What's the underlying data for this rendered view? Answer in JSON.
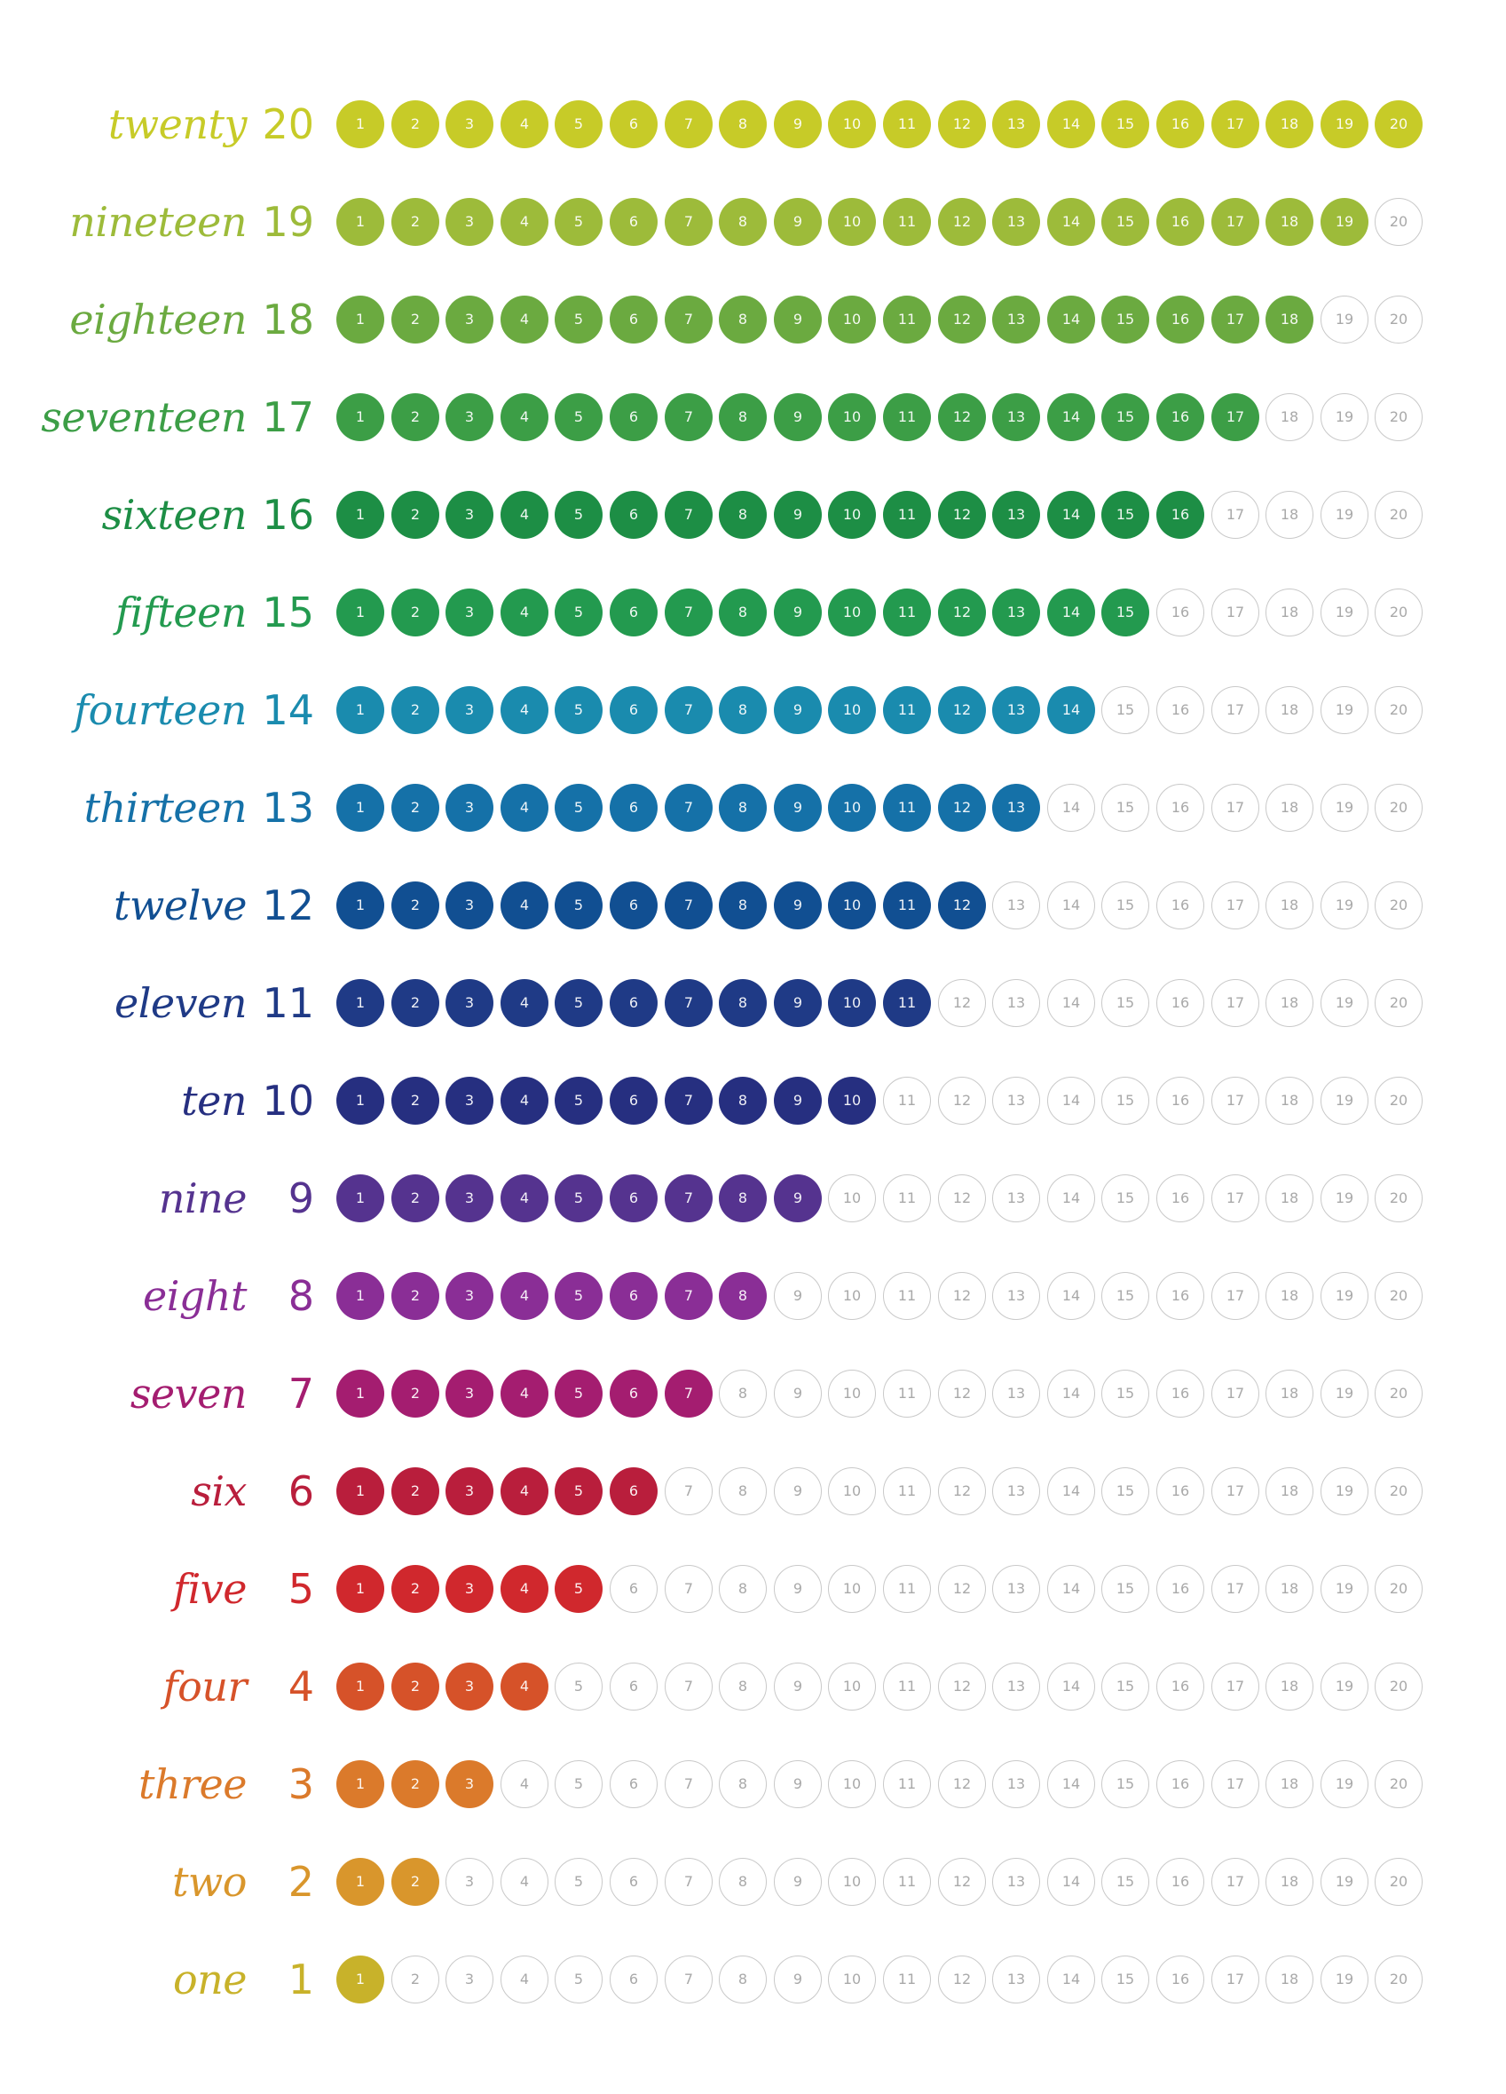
{
  "max": 20,
  "rows": [
    {
      "word": "twenty",
      "number": "20",
      "count": 20,
      "color": "#C7CB28"
    },
    {
      "word": "nineteen",
      "number": "19",
      "count": 19,
      "color": "#9DBB3A"
    },
    {
      "word": "eighteen",
      "number": "18",
      "count": 18,
      "color": "#6BAA40"
    },
    {
      "word": "seventeen",
      "number": "17",
      "count": 17,
      "color": "#3C9E46"
    },
    {
      "word": "sixteen",
      "number": "16",
      "count": 16,
      "color": "#1D8E45"
    },
    {
      "word": "fifteen",
      "number": "15",
      "count": 15,
      "color": "#239A4F"
    },
    {
      "word": "fourteen",
      "number": "14",
      "count": 14,
      "color": "#1A8BAE"
    },
    {
      "word": "thirteen",
      "number": "13",
      "count": 13,
      "color": "#1571A8"
    },
    {
      "word": "twelve",
      "number": "12",
      "count": 12,
      "color": "#114F92"
    },
    {
      "word": "eleven",
      "number": "11",
      "count": 11,
      "color": "#1F3A86"
    },
    {
      "word": "ten",
      "number": "10",
      "count": 10,
      "color": "#262F80"
    },
    {
      "word": "nine",
      "number": "9",
      "count": 9,
      "color": "#55338F"
    },
    {
      "word": "eight",
      "number": "8",
      "count": 8,
      "color": "#8A2E96"
    },
    {
      "word": "seven",
      "number": "7",
      "count": 7,
      "color": "#A41D70"
    },
    {
      "word": "six",
      "number": "6",
      "count": 6,
      "color": "#B91E3C"
    },
    {
      "word": "five",
      "number": "5",
      "count": 5,
      "color": "#D0282D"
    },
    {
      "word": "four",
      "number": "4",
      "count": 4,
      "color": "#D65229"
    },
    {
      "word": "three",
      "number": "3",
      "count": 3,
      "color": "#DB7A2B"
    },
    {
      "word": "two",
      "number": "2",
      "count": 2,
      "color": "#D9962C"
    },
    {
      "word": "one",
      "number": "1",
      "count": 1,
      "color": "#C8B22A"
    }
  ]
}
